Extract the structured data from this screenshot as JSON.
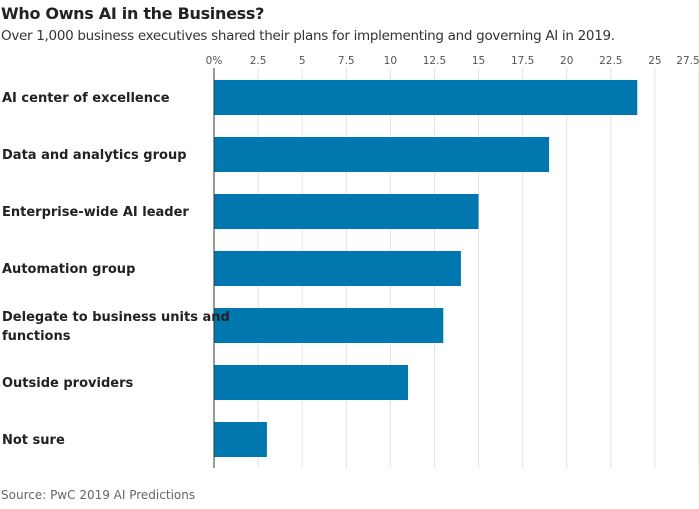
{
  "chart_data": {
    "type": "bar",
    "orientation": "horizontal",
    "title": "Who Owns AI in the Business?",
    "subtitle": "Over 1,000 business executives shared their plans for implementing and governing AI in 2019.",
    "source": "Source: PwC 2019 AI Predictions",
    "categories": [
      [
        "AI center of excellence"
      ],
      [
        "Data and analytics group"
      ],
      [
        "Enterprise-wide AI leader"
      ],
      [
        "Automation group"
      ],
      [
        "Delegate to business units and",
        "functions"
      ],
      [
        "Outside providers"
      ],
      [
        "Not sure"
      ]
    ],
    "values": [
      24,
      19,
      15,
      14,
      13,
      11,
      3
    ],
    "xlim": [
      0,
      27.5
    ],
    "ticks": [
      "0%",
      "2.5",
      "5",
      "7.5",
      "10",
      "12.5",
      "15",
      "17.5",
      "20",
      "22.5",
      "25",
      "27.5"
    ],
    "tick_values": [
      0,
      2.5,
      5,
      7.5,
      10,
      12.5,
      15,
      17.5,
      20,
      22.5,
      25,
      27.5
    ],
    "grid": true,
    "bar_color": "#0077ae"
  }
}
